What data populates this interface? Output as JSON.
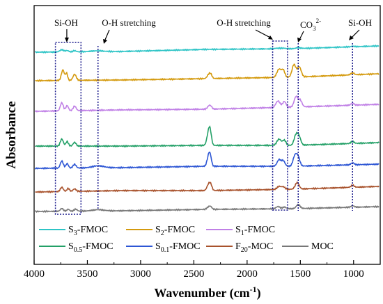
{
  "chart_data": {
    "type": "line",
    "xlabel": "Wavenumber (cm",
    "xlabel_sup": "-1",
    "xlabel_close": ")",
    "ylabel": "Absorbance",
    "xlim": [
      4000,
      750
    ],
    "x_reversed": true,
    "x_ticks": [
      4000,
      3500,
      3000,
      2500,
      2000,
      1500,
      1000
    ],
    "grid": false,
    "legend_position": "bottom",
    "series": [
      {
        "name_main": "S",
        "name_sub": "3",
        "name_rest": "-FMOC",
        "color": "#2ec4c6",
        "offset": 7
      },
      {
        "name_main": "S",
        "name_sub": "2",
        "name_rest": "-FMOC",
        "color": "#d49a0e",
        "offset": 6
      },
      {
        "name_main": "S",
        "name_sub": "1",
        "name_rest": "-FMOC",
        "color": "#c080e6",
        "offset": 5
      },
      {
        "name_main": "S",
        "name_sub": "0.5",
        "name_rest": "-FMOC",
        "color": "#23a067",
        "offset": 4
      },
      {
        "name_main": "S",
        "name_sub": "0.1",
        "name_rest": "-FMOC",
        "color": "#2d56d4",
        "offset": 3
      },
      {
        "name_main": "F",
        "name_sub": "20",
        "name_rest": "-MOC",
        "color": "#a8522c",
        "offset": 2
      },
      {
        "name_main": "MOC",
        "name_sub": "",
        "name_rest": "",
        "color": "#777777",
        "offset": 1
      }
    ],
    "annotations": [
      {
        "text": "Si-OH",
        "type": "box",
        "x1": 3800,
        "x2": 3560
      },
      {
        "text": "O-H stretching",
        "type": "line",
        "x": 3400
      },
      {
        "text": "O-H stretching",
        "type": "box",
        "x1": 1760,
        "x2": 1620
      },
      {
        "text_main": "CO",
        "text_sub": "3",
        "text_sup": "2-",
        "type": "line",
        "x": 1520
      },
      {
        "text": "Si-OH",
        "type": "line",
        "x": 1010
      }
    ]
  }
}
